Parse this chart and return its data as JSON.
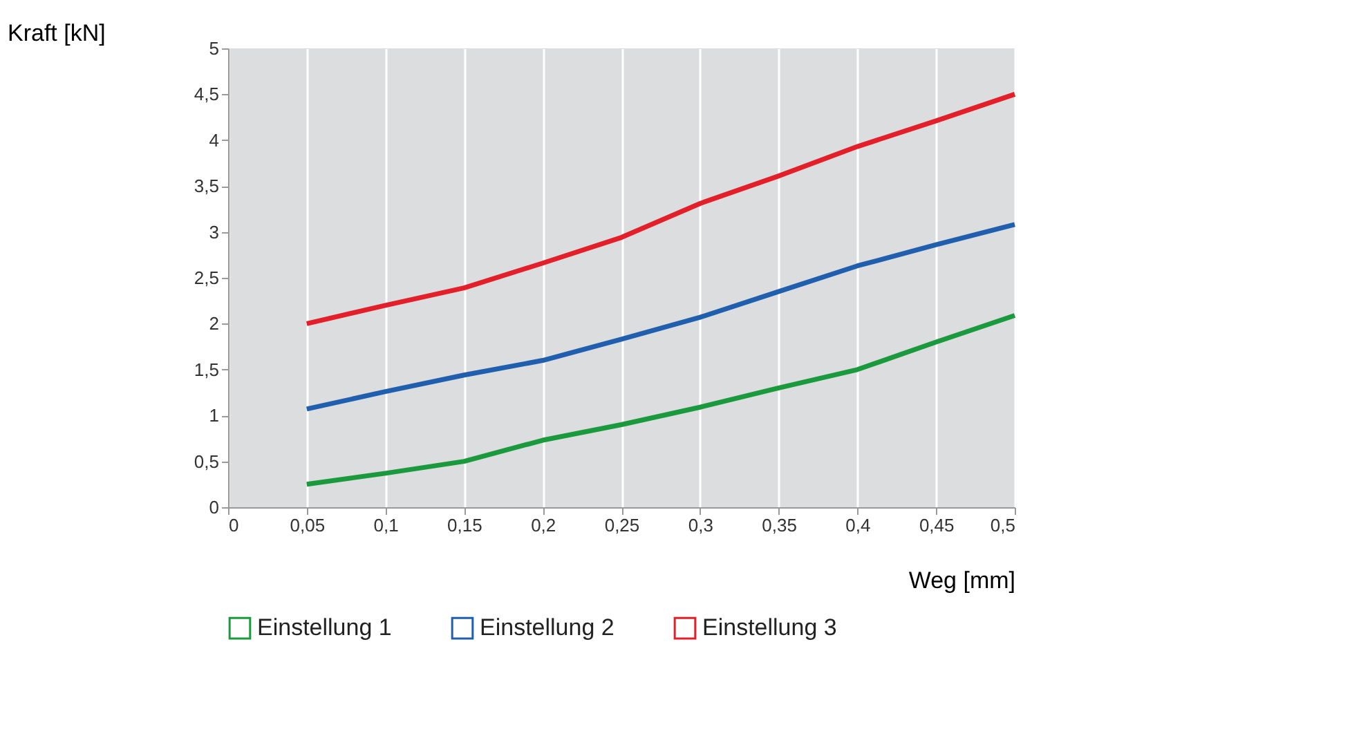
{
  "chart_data": {
    "type": "line",
    "xlabel": "Weg [mm]",
    "ylabel": "Kraft [kN]",
    "x": [
      0.05,
      0.1,
      0.15,
      0.2,
      0.25,
      0.3,
      0.35,
      0.4,
      0.45,
      0.5
    ],
    "series": [
      {
        "name": "Einstellung 1",
        "color": "#1a9a3c",
        "values": [
          0.25,
          0.37,
          0.5,
          0.73,
          0.9,
          1.09,
          1.3,
          1.5,
          1.8,
          2.09
        ]
      },
      {
        "name": "Einstellung 2",
        "color": "#1f5fae",
        "values": [
          1.07,
          1.26,
          1.44,
          1.6,
          1.83,
          2.07,
          2.35,
          2.63,
          2.86,
          3.08
        ]
      },
      {
        "name": "Einstellung 3",
        "color": "#e3202a",
        "values": [
          2.0,
          2.2,
          2.39,
          2.66,
          2.94,
          3.31,
          3.61,
          3.93,
          4.21,
          4.5
        ]
      }
    ],
    "xlim": [
      0,
      0.5
    ],
    "xticks": [
      0,
      {
        "value": 0.05,
        "label": "0,05"
      },
      {
        "value": 0.1,
        "label": "0,1"
      },
      {
        "value": 0.15,
        "label": "0,15"
      },
      {
        "value": 0.2,
        "label": "0,2"
      },
      {
        "value": 0.25,
        "label": "0,25"
      },
      {
        "value": 0.3,
        "label": "0,3"
      },
      {
        "value": 0.35,
        "label": "0,35"
      },
      {
        "value": 0.4,
        "label": "0,4"
      },
      {
        "value": 0.45,
        "label": "0,45"
      },
      {
        "value": 0.5,
        "label": "0,5"
      }
    ],
    "ylim": [
      0,
      5
    ],
    "yticks": [
      0,
      {
        "value": 0.5,
        "label": "0,5"
      },
      1,
      {
        "value": 1.5,
        "label": "1,5"
      },
      2,
      {
        "value": 2.5,
        "label": "2,5"
      },
      3,
      {
        "value": 3.5,
        "label": "3,5"
      },
      4,
      {
        "value": 4.5,
        "label": "4,5"
      },
      5
    ],
    "grid": "x",
    "legend": "bottom",
    "marker": "none",
    "line_style": "solid"
  }
}
